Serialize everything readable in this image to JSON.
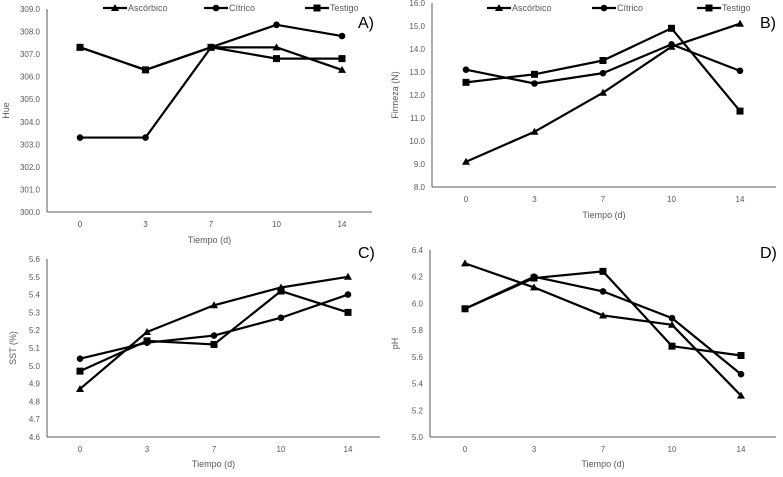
{
  "chart_data": [
    {
      "type": "line",
      "panel_label": "A)",
      "title": "",
      "xlabel": "Tiempo (d)",
      "ylabel": "Hue",
      "categories": [
        "0",
        "3",
        "7",
        "10",
        "14"
      ],
      "ylim": [
        300.0,
        309.0
      ],
      "yticks": [
        "300.0",
        "301.0",
        "302.0",
        "303.0",
        "304.0",
        "305.0",
        "306.0",
        "307.0",
        "308.0",
        "309.0"
      ],
      "grid": false,
      "legend": "top",
      "series": [
        {
          "name": "Ascórbico",
          "marker": "triangle",
          "values": [
            307.3,
            306.3,
            307.3,
            307.3,
            306.3
          ]
        },
        {
          "name": "Cítrico",
          "marker": "circle",
          "values": [
            303.3,
            303.3,
            307.3,
            308.3,
            307.8
          ]
        },
        {
          "name": "Testigo",
          "marker": "square",
          "values": [
            307.3,
            306.3,
            307.3,
            306.8,
            306.8
          ]
        }
      ]
    },
    {
      "type": "line",
      "panel_label": "B)",
      "title": "",
      "xlabel": "Tiempo (d)",
      "ylabel": "Firmeza (N)",
      "categories": [
        "0",
        "3",
        "7",
        "10",
        "14"
      ],
      "ylim": [
        8.0,
        16.0
      ],
      "yticks": [
        "8.0",
        "9.0",
        "10.0",
        "11.0",
        "12.0",
        "13.0",
        "14.0",
        "15.0",
        "16.0"
      ],
      "grid": false,
      "legend": "top",
      "series": [
        {
          "name": "Ascórbico",
          "marker": "triangle",
          "values": [
            9.1,
            10.4,
            12.1,
            14.1,
            15.1
          ]
        },
        {
          "name": "Cítrico",
          "marker": "circle",
          "values": [
            13.1,
            12.5,
            12.95,
            14.2,
            13.05
          ]
        },
        {
          "name": "Testigo",
          "marker": "square",
          "values": [
            12.55,
            12.9,
            13.5,
            14.9,
            11.3
          ]
        }
      ]
    },
    {
      "type": "line",
      "panel_label": "C)",
      "title": "",
      "xlabel": "Tiempo (d)",
      "ylabel": "SST (%)",
      "categories": [
        "0",
        "3",
        "7",
        "10",
        "14"
      ],
      "ylim": [
        4.6,
        5.6
      ],
      "yticks": [
        "4.6",
        "4.7",
        "4.8",
        "4.9",
        "5.0",
        "5.1",
        "5.2",
        "5.3",
        "5.4",
        "5.5",
        "5.6"
      ],
      "grid": false,
      "legend": "none",
      "series": [
        {
          "name": "Ascórbico",
          "marker": "triangle",
          "values": [
            4.87,
            5.19,
            5.34,
            5.44,
            5.5
          ]
        },
        {
          "name": "Cítrico",
          "marker": "circle",
          "values": [
            5.04,
            5.13,
            5.17,
            5.27,
            5.4
          ]
        },
        {
          "name": "Testigo",
          "marker": "square",
          "values": [
            4.97,
            5.14,
            5.12,
            5.42,
            5.3
          ]
        }
      ]
    },
    {
      "type": "line",
      "panel_label": "D)",
      "title": "",
      "xlabel": "Tiempo (d)",
      "ylabel": "pH",
      "categories": [
        "0",
        "3",
        "7",
        "10",
        "14"
      ],
      "ylim": [
        5.0,
        6.4
      ],
      "yticks": [
        "5.0",
        "5.2",
        "5.4",
        "5.6",
        "5.8",
        "6.0",
        "6.2",
        "6.4"
      ],
      "grid": false,
      "legend": "none",
      "series": [
        {
          "name": "Ascórbico",
          "marker": "triangle",
          "values": [
            6.3,
            6.12,
            5.91,
            5.84,
            5.31
          ]
        },
        {
          "name": "Cítrico",
          "marker": "circle",
          "values": [
            5.96,
            6.2,
            6.09,
            5.89,
            5.47
          ]
        },
        {
          "name": "Testigo",
          "marker": "square",
          "values": [
            5.96,
            6.19,
            6.24,
            5.68,
            5.61
          ]
        }
      ]
    }
  ],
  "colors": {
    "line": "#000000",
    "axis": "#595959",
    "text": "#595959",
    "panel_label": "#000000"
  }
}
